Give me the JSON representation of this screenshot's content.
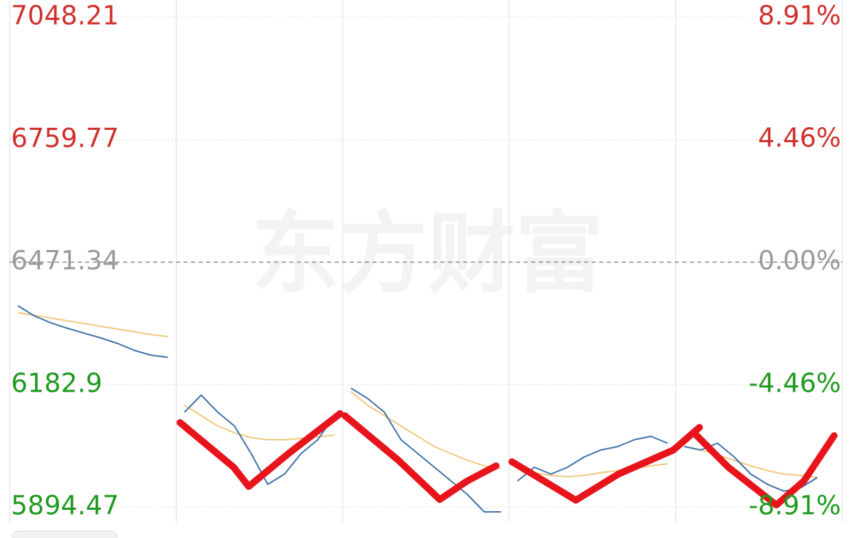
{
  "chart_data": {
    "type": "line",
    "watermark": "东方财富",
    "x": [
      0.05,
      0.15,
      0.25,
      0.35,
      0.45,
      0.55,
      0.65,
      0.75,
      0.85,
      0.95,
      1,
      1.05,
      1.15,
      1.25,
      1.35,
      1.45,
      1.55,
      1.65,
      1.75,
      1.85,
      1.95,
      2,
      2.05,
      2.15,
      2.25,
      2.35,
      2.45,
      2.55,
      2.65,
      2.75,
      2.85,
      2.95,
      3,
      3.05,
      3.15,
      3.25,
      3.35,
      3.45,
      3.55,
      3.65,
      3.75,
      3.85,
      3.95,
      4,
      4.05,
      4.15,
      4.25,
      4.35,
      4.45,
      4.55,
      4.65,
      4.75,
      4.85,
      4.95
    ],
    "series": [
      {
        "color": "#3b6ea8",
        "values": [
          6368.6,
          6344.4,
          6328.0,
          6315.2,
          6303.8,
          6292.5,
          6279.6,
          6263.4,
          6252.1,
          6247.2,
          null,
          6117.8,
          6158.3,
          6117.8,
          6085.5,
          6020.5,
          5948.0,
          5972.2,
          6020.5,
          6053.1,
          6109.8,
          null,
          6174.5,
          6150.2,
          6117.8,
          6053.1,
          6020.7,
          5988.4,
          5956.0,
          5923.7,
          5883.2,
          5883.2,
          null,
          5956.0,
          5988.4,
          5972.2,
          5988.4,
          6012.7,
          6028.9,
          6036.9,
          6053.1,
          6061.2,
          6045.0,
          null,
          6037.0,
          6028.9,
          6045.0,
          6012.7,
          5972.2,
          5948.0,
          5931.8,
          5939.9,
          5964.1,
          null
        ]
      },
      {
        "color": "#f0c87a",
        "values": [
          6352.4,
          6346.0,
          6339.5,
          6333.0,
          6326.6,
          6320.1,
          6313.6,
          6307.2,
          6300.7,
          6296.0,
          null,
          6134.1,
          6109.8,
          6085.5,
          6069.4,
          6058.0,
          6053.1,
          6053.1,
          6056.3,
          6059.6,
          6064.4,
          null,
          6166.4,
          6134.1,
          6109.8,
          6085.5,
          6061.2,
          6036.9,
          6020.7,
          6004.6,
          5991.6,
          5985.2,
          null,
          5988.4,
          5975.5,
          5969.0,
          5965.8,
          5969.0,
          5975.5,
          5980.3,
          5985.2,
          5991.6,
          5996.5,
          null,
          6037.0,
          6028.9,
          6017.6,
          6004.6,
          5991.6,
          5980.3,
          5972.2,
          5969.0,
          5964.1,
          null
        ]
      }
    ],
    "xlim": [
      0,
      5
    ],
    "xticks": [
      0,
      1,
      2,
      3,
      4,
      5
    ],
    "ylim": [
      5858.9,
      7088.7
    ],
    "yticks": [
      7048.21,
      6759.77,
      6471.34,
      6182.9,
      5894.47
    ],
    "y2lim": [
      -9.46,
      9.54
    ],
    "y2ticks": [
      {
        "value": 8.91,
        "label": "8.91%"
      },
      {
        "value": 4.46,
        "label": "4.46%"
      },
      {
        "value": 0,
        "label": "0.00%"
      },
      {
        "value": -4.46,
        "label": "-4.46%"
      },
      {
        "value": -8.91,
        "label": "-8.91%"
      }
    ],
    "up_color": "#d0312d",
    "down_color": "#1f9a1f",
    "flat_color": "#9a9a9a",
    "grid": true
  }
}
